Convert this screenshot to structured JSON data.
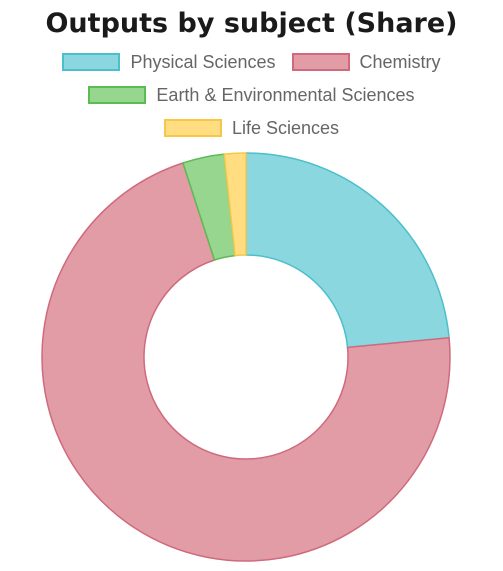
{
  "chart_data": {
    "type": "doughnut",
    "title": "Outputs by subject (Share)",
    "categories": [
      "Physical Sciences",
      "Chemistry",
      "Earth & Environmental Sciences",
      "Life Sciences"
    ],
    "values": [
      23.5,
      71.5,
      3.3,
      1.7
    ],
    "colors": {
      "fill": [
        "#8AD7E0",
        "#E29CA6",
        "#96D68E",
        "#FFDD80"
      ],
      "border": [
        "#4BBFCB",
        "#CF6A7E",
        "#5DBB54",
        "#F5C84A"
      ]
    },
    "legend_position": "top"
  }
}
